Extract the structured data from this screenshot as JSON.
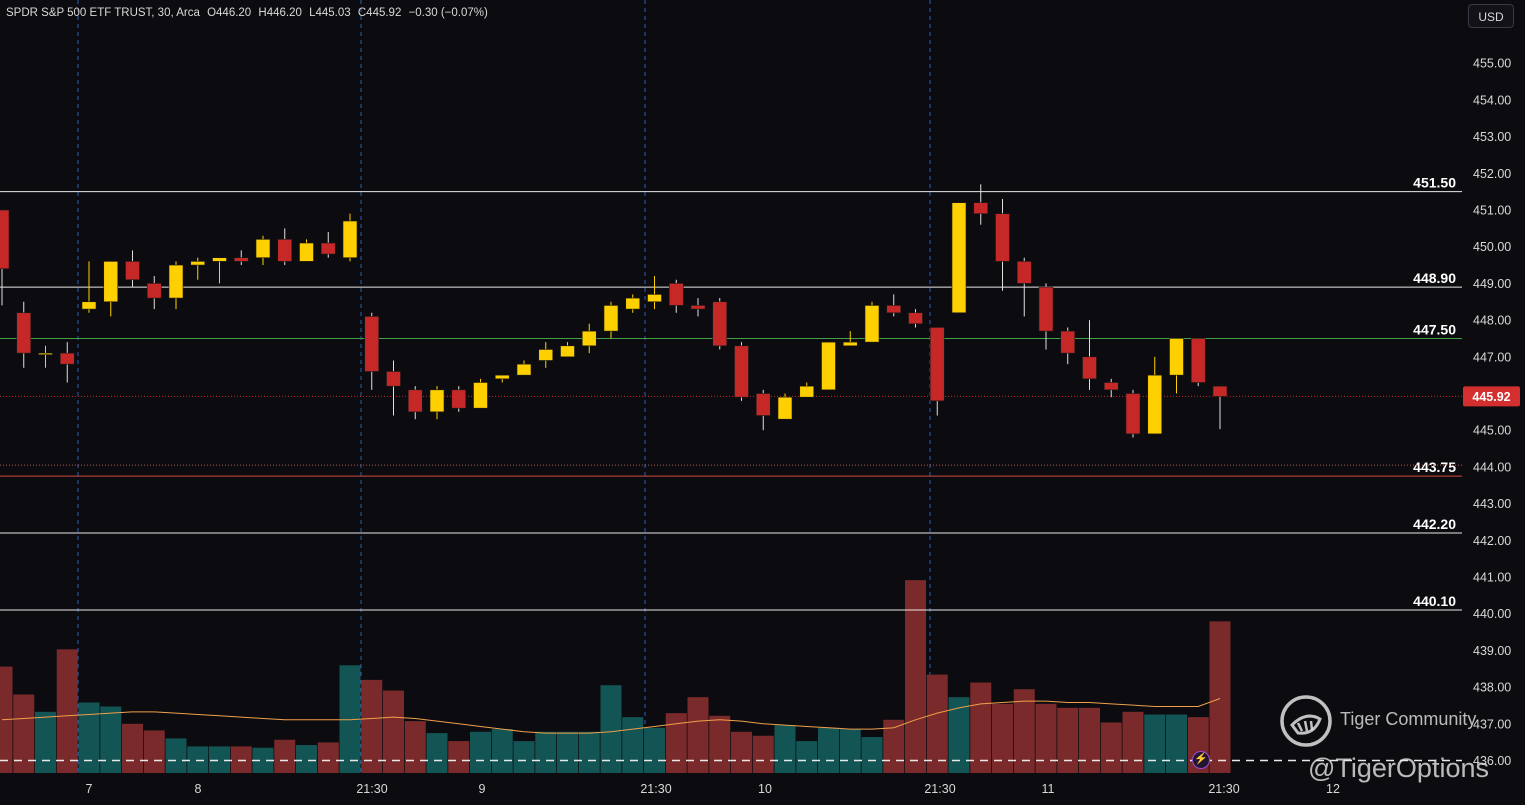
{
  "header": {
    "symbol": "SPDR S&P 500 ETF TRUST, 30, Arca",
    "open": "O446.20",
    "high": "H446.20",
    "low": "L445.03",
    "close": "C445.92",
    "change": "−0.30 (−0.07%)"
  },
  "currency_button": "USD",
  "watermark": {
    "line1": "Tiger Community",
    "line2": "@TigerOptions"
  },
  "chart_data": {
    "type": "candlestick",
    "y_axis": {
      "min": 436,
      "max": 455,
      "ticks": [
        436,
        437,
        438,
        439,
        440,
        441,
        442,
        443,
        444,
        445,
        446,
        447,
        448,
        449,
        450,
        451,
        452,
        453,
        454,
        455
      ],
      "side": "right"
    },
    "x_axis": {
      "tick_labels": [
        "7",
        "8",
        "21:30",
        "9",
        "21:30",
        "10",
        "21:30",
        "11",
        "21:30",
        "12"
      ]
    },
    "last_price": "445.92",
    "levels": [
      {
        "label": "451.50",
        "value": 451.5,
        "color": "#e8e8e8",
        "style": "solid"
      },
      {
        "label": "448.90",
        "value": 448.9,
        "color": "#e8e8e8",
        "style": "solid"
      },
      {
        "label": "447.50",
        "value": 447.5,
        "color": "#43a047",
        "style": "solid"
      },
      {
        "label": "443.75",
        "value": 443.75,
        "color": "#d04a3a",
        "style": "solid"
      },
      {
        "label": "442.20",
        "value": 442.2,
        "color": "#e8e8e8",
        "style": "solid"
      },
      {
        "label": "440.10",
        "value": 440.1,
        "color": "#e8e8e8",
        "style": "solid"
      }
    ],
    "session_separators": [
      "7",
      "21:30",
      "21:30",
      "21:30"
    ],
    "candles": [
      [
        451.0,
        449.4,
        451.0,
        448.4
      ],
      [
        448.2,
        447.1,
        448.5,
        446.7
      ],
      [
        447.1,
        447.1,
        447.3,
        446.7
      ],
      [
        447.1,
        446.8,
        447.4,
        446.3
      ],
      [
        448.3,
        448.5,
        449.6,
        448.2
      ],
      [
        448.5,
        449.6,
        449.6,
        448.1
      ],
      [
        449.6,
        449.1,
        449.9,
        448.9
      ],
      [
        449.0,
        448.6,
        449.2,
        448.3
      ],
      [
        448.6,
        449.5,
        449.6,
        448.3
      ],
      [
        449.5,
        449.6,
        449.7,
        449.1
      ],
      [
        449.6,
        449.7,
        449.7,
        449.0
      ],
      [
        449.7,
        449.6,
        449.9,
        449.5
      ],
      [
        449.7,
        450.2,
        450.3,
        449.5
      ],
      [
        450.2,
        449.6,
        450.5,
        449.5
      ],
      [
        449.6,
        450.1,
        450.2,
        449.6
      ],
      [
        450.1,
        449.8,
        450.4,
        449.7
      ],
      [
        449.7,
        450.7,
        450.9,
        449.6
      ],
      [
        448.1,
        446.6,
        448.2,
        446.1
      ],
      [
        446.6,
        446.2,
        446.9,
        445.4
      ],
      [
        446.1,
        445.5,
        446.2,
        445.3
      ],
      [
        445.5,
        446.1,
        446.2,
        445.3
      ],
      [
        446.1,
        445.6,
        446.2,
        445.5
      ],
      [
        445.6,
        446.3,
        446.4,
        445.6
      ],
      [
        446.4,
        446.5,
        446.5,
        446.3
      ],
      [
        446.5,
        446.8,
        446.9,
        446.5
      ],
      [
        446.9,
        447.2,
        447.4,
        446.7
      ],
      [
        447.0,
        447.3,
        447.4,
        447.0
      ],
      [
        447.3,
        447.7,
        447.9,
        447.1
      ],
      [
        447.7,
        448.4,
        448.5,
        447.5
      ],
      [
        448.3,
        448.6,
        448.7,
        448.2
      ],
      [
        448.5,
        448.7,
        449.2,
        448.3
      ],
      [
        449.0,
        448.4,
        449.1,
        448.2
      ],
      [
        448.4,
        448.3,
        448.6,
        448.1
      ],
      [
        448.5,
        447.3,
        448.6,
        447.2
      ],
      [
        447.3,
        445.9,
        447.4,
        445.8
      ],
      [
        446.0,
        445.4,
        446.1,
        445.0
      ],
      [
        445.3,
        445.9,
        446.0,
        445.3
      ],
      [
        445.9,
        446.2,
        446.3,
        445.9
      ],
      [
        446.1,
        447.4,
        447.4,
        446.1
      ],
      [
        447.3,
        447.4,
        447.7,
        447.3
      ],
      [
        447.4,
        448.4,
        448.5,
        447.4
      ],
      [
        448.4,
        448.2,
        448.7,
        448.1
      ],
      [
        448.2,
        447.9,
        448.3,
        447.8
      ],
      [
        447.8,
        445.8,
        447.8,
        445.4
      ],
      [
        448.2,
        451.2,
        451.2,
        448.2
      ],
      [
        451.2,
        450.9,
        451.7,
        450.6
      ],
      [
        450.9,
        449.6,
        451.3,
        448.8
      ],
      [
        449.6,
        449.0,
        449.7,
        448.1
      ],
      [
        448.9,
        447.7,
        449.0,
        447.2
      ],
      [
        447.7,
        447.1,
        447.8,
        446.8
      ],
      [
        447.0,
        446.4,
        448.0,
        446.1
      ],
      [
        446.3,
        446.1,
        446.4,
        445.9
      ],
      [
        446.0,
        444.9,
        446.1,
        444.8
      ],
      [
        444.9,
        446.5,
        447.0,
        444.9
      ],
      [
        446.5,
        447.5,
        447.5,
        446.0
      ],
      [
        447.5,
        446.3,
        447.5,
        446.2
      ],
      [
        446.2,
        445.92,
        446.2,
        445.03
      ]
    ],
    "volume_relative": [
      0.8,
      0.59,
      0.46,
      0.93,
      0.53,
      0.5,
      0.37,
      0.32,
      0.26,
      0.2,
      0.2,
      0.2,
      0.19,
      0.25,
      0.21,
      0.23,
      0.81,
      0.7,
      0.62,
      0.39,
      0.3,
      0.24,
      0.31,
      0.33,
      0.24,
      0.31,
      0.31,
      0.31,
      0.66,
      0.42,
      0.34,
      0.45,
      0.57,
      0.43,
      0.31,
      0.28,
      0.36,
      0.24,
      0.34,
      0.33,
      0.27,
      0.4,
      1.45,
      0.74,
      0.57,
      0.68,
      0.52,
      0.63,
      0.52,
      0.49,
      0.49,
      0.38,
      0.46,
      0.44,
      0.44,
      0.42,
      1.14
    ],
    "volume_ma_relative": [
      0.4,
      0.41,
      0.42,
      0.43,
      0.44,
      0.45,
      0.46,
      0.46,
      0.45,
      0.44,
      0.43,
      0.42,
      0.41,
      0.4,
      0.4,
      0.4,
      0.4,
      0.41,
      0.42,
      0.41,
      0.39,
      0.37,
      0.35,
      0.33,
      0.31,
      0.3,
      0.3,
      0.3,
      0.31,
      0.33,
      0.35,
      0.37,
      0.39,
      0.4,
      0.39,
      0.37,
      0.36,
      0.35,
      0.34,
      0.33,
      0.33,
      0.34,
      0.4,
      0.45,
      0.49,
      0.52,
      0.53,
      0.54,
      0.54,
      0.53,
      0.53,
      0.52,
      0.51,
      0.5,
      0.5,
      0.5,
      0.56
    ]
  }
}
